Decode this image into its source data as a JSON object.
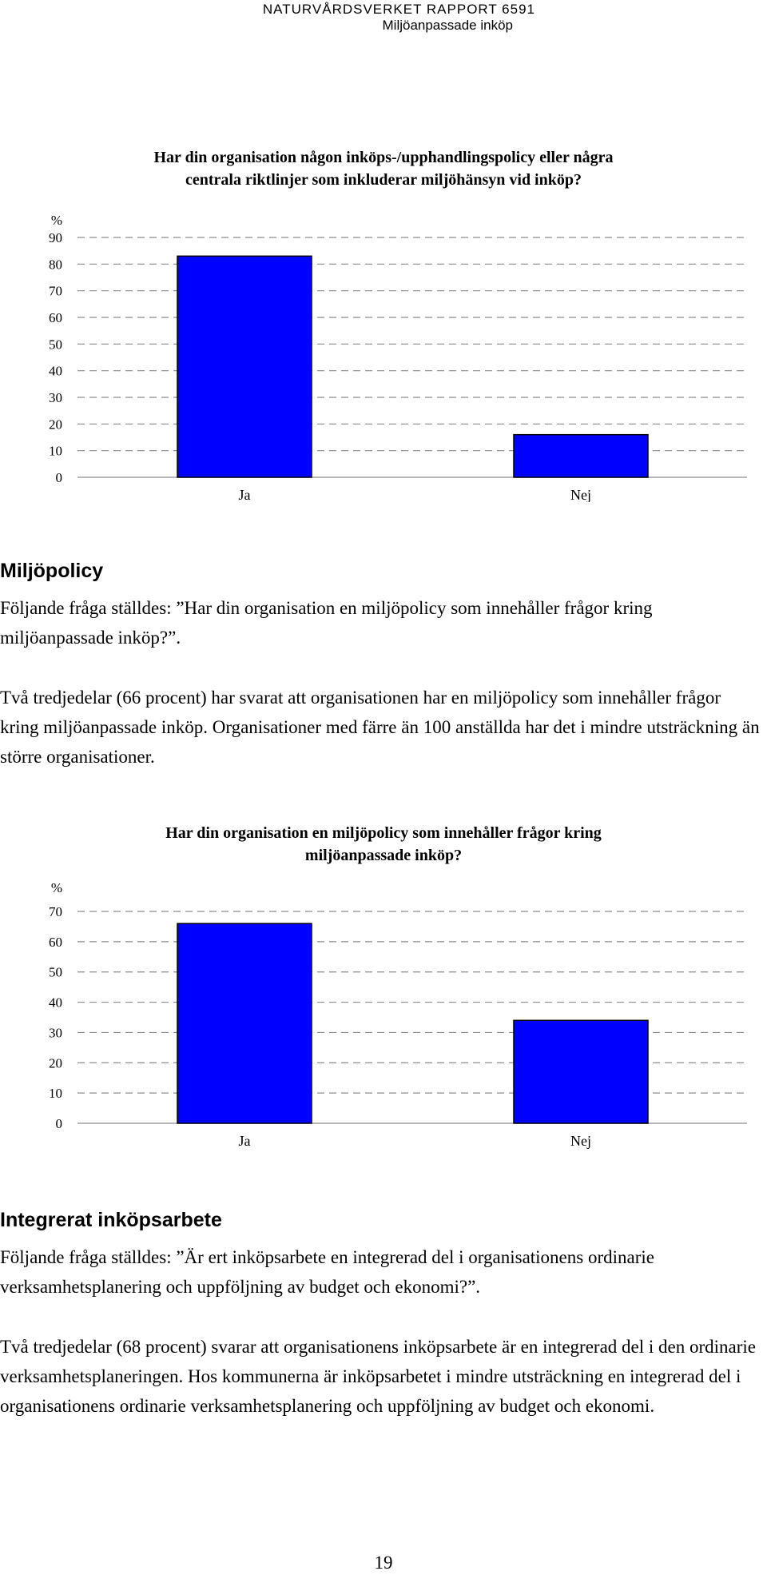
{
  "header": {
    "report": "NATURVÅRDSVERKET RAPPORT 6591",
    "subtitle": "Miljöanpassade inköp"
  },
  "charts": {
    "chart1": {
      "title_line1": "Har din organisation någon inköps-/upphandlingspolicy eller några",
      "title_line2": "centrala riktlinjer som inkluderar miljöhänsyn vid inköp?"
    },
    "chart2": {
      "title_line1": "Har din organisation en miljöpolicy som innehåller frågor kring",
      "title_line2": "miljöanpassade inköp?"
    }
  },
  "chart_data": [
    {
      "type": "bar",
      "title": "Har din organisation någon inköps-/upphandlingspolicy eller några centrala riktlinjer som inkluderar miljöhänsyn vid inköp?",
      "categories": [
        "Ja",
        "Nej"
      ],
      "values": [
        83,
        16
      ],
      "ylabel": "%",
      "ylim": [
        0,
        90
      ],
      "yticks": [
        0,
        10,
        20,
        30,
        40,
        50,
        60,
        70,
        80,
        90
      ],
      "grid": "dashed horizontal",
      "bar_color": "#0000ff"
    },
    {
      "type": "bar",
      "title": "Har din organisation en miljöpolicy som innehåller frågor kring miljöanpassade inköp?",
      "categories": [
        "Ja",
        "Nej"
      ],
      "values": [
        66,
        34
      ],
      "ylabel": "%",
      "ylim": [
        0,
        70
      ],
      "yticks": [
        0,
        10,
        20,
        30,
        40,
        50,
        60,
        70
      ],
      "grid": "dashed horizontal",
      "bar_color": "#0000ff"
    }
  ],
  "section1": {
    "heading": "Miljöpolicy",
    "p1": "Följande fråga ställdes: ”Har din organisation en miljöpolicy som innehåller frågor kring miljöanpassade inköp?”.",
    "p2": "Två tredjedelar (66 procent) har svarat att organisationen har en miljöpolicy som innehåller frågor kring miljöanpassade inköp. Organisationer med färre än 100 anställda har det i mindre utsträckning än större organisationer."
  },
  "section2": {
    "heading": "Integrerat inköpsarbete",
    "p1": "Följande fråga ställdes: ”Är ert inköpsarbete en integrerad del i organisationens ordinarie verksamhetsplanering och uppföljning av budget och ekonomi?”.",
    "p2": "Två tredjedelar (68 procent) svarar att organisationens inköpsarbete är en integrerad del i den ordinarie verksamhetsplaneringen. Hos kommunerna är inköpsarbetet i mindre utsträckning en integrerad del i organisationens ordinarie verksamhetsplanering och uppföljning av budget och ekonomi."
  },
  "page_number": "19"
}
